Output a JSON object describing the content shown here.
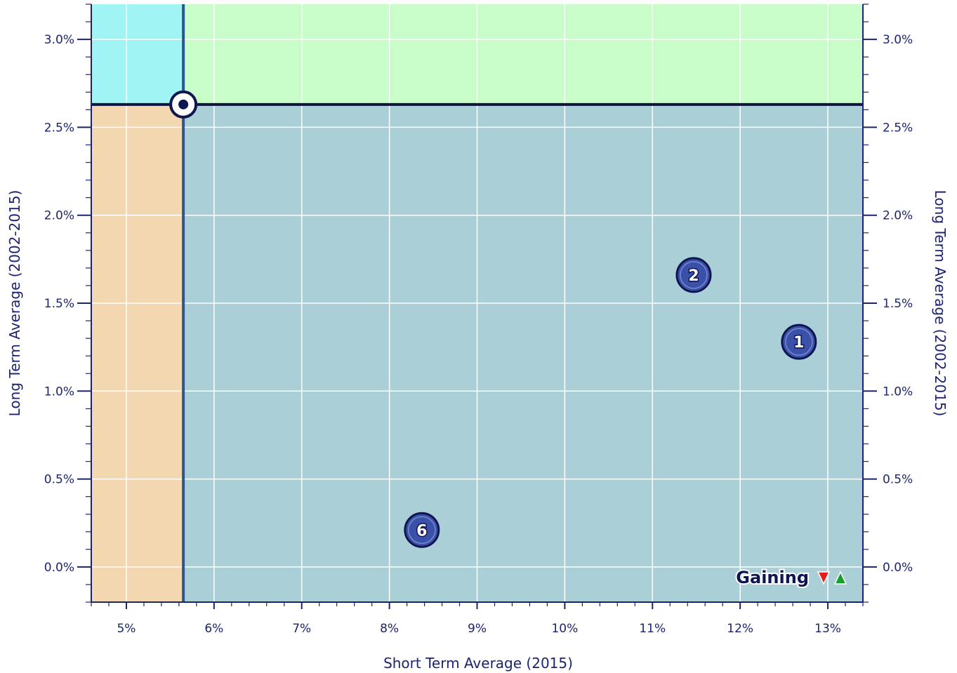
{
  "chart_data": {
    "type": "scatter",
    "title": "",
    "xlabel": "Short Term Average (2015)",
    "ylabel": "Long Term Average (2002-2015)",
    "ylabel_right": "Long Term Average (2002-2015)",
    "xlim": [
      4.6,
      13.4
    ],
    "ylim": [
      -0.2,
      3.2
    ],
    "x_ticks": [
      {
        "value": 5,
        "label": "5%"
      },
      {
        "value": 6,
        "label": "6%"
      },
      {
        "value": 7,
        "label": "7%"
      },
      {
        "value": 8,
        "label": "8%"
      },
      {
        "value": 9,
        "label": "9%"
      },
      {
        "value": 10,
        "label": "10%"
      },
      {
        "value": 11,
        "label": "11%"
      },
      {
        "value": 12,
        "label": "12%"
      },
      {
        "value": 13,
        "label": "13%"
      }
    ],
    "y_ticks": [
      {
        "value": 0.0,
        "label": "0.0%"
      },
      {
        "value": 0.5,
        "label": "0.5%"
      },
      {
        "value": 1.0,
        "label": "1.0%"
      },
      {
        "value": 1.5,
        "label": "1.5%"
      },
      {
        "value": 2.0,
        "label": "2.0%"
      },
      {
        "value": 2.5,
        "label": "2.5%"
      },
      {
        "value": 3.0,
        "label": "3.0%"
      }
    ],
    "grid": true,
    "reference_point": {
      "x": 5.65,
      "y": 2.63
    },
    "quadrant_colors": {
      "top_left": "#a0f4f4",
      "top_right": "#c8fcc8",
      "bottom_left": "#f3d7b0",
      "bottom_right": "#abcfd6"
    },
    "points": [
      {
        "label": "1",
        "x": 12.67,
        "y": 1.28
      },
      {
        "label": "2",
        "x": 11.47,
        "y": 1.66
      },
      {
        "label": "6",
        "x": 8.37,
        "y": 0.21
      }
    ],
    "legend": {
      "text": "Gaining",
      "position": "bottom-right"
    },
    "colors": {
      "axis": "#1c2370",
      "marker_fill": "#3b50a8",
      "marker_edge": "#0e1550",
      "reference_line_vertical": "#2c5590",
      "reference_line_horizontal": "#0e1540",
      "grid": "#ffffff",
      "arrow_down": "#e41c1c",
      "arrow_up": "#1a9e2a"
    }
  }
}
